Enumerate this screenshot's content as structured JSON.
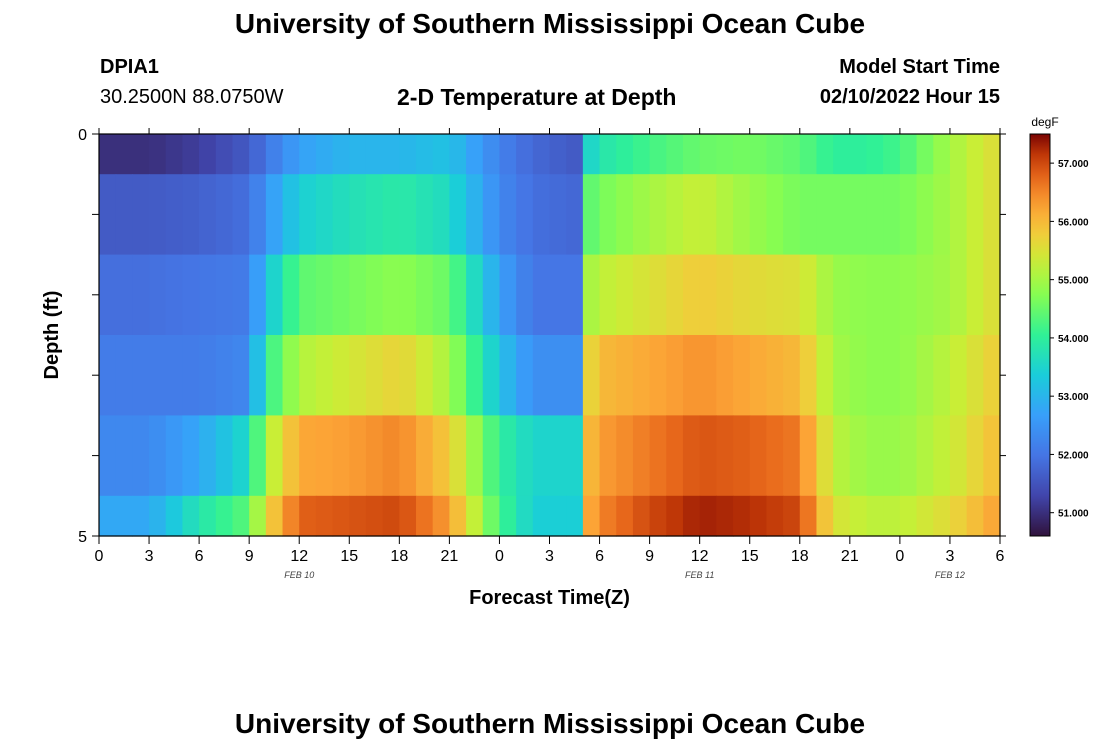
{
  "header": {
    "title": "University of Southern Mississippi Ocean Cube",
    "station": "DPIA1",
    "coords": "30.2500N  88.0750W",
    "plot_title": "2-D Temperature at Depth",
    "model_start_label": "Model Start Time",
    "model_start_value": "02/10/2022 Hour 15"
  },
  "footer": {
    "title": "University of Southern Mississippi Ocean Cube"
  },
  "chart_data": {
    "type": "heatmap",
    "title": "2-D Temperature at Depth",
    "xlabel": "Forecast Time(Z)",
    "ylabel": "Depth (ft)",
    "x_range_hours": [
      0,
      54
    ],
    "x_ticks": [
      "0",
      "3",
      "6",
      "9",
      "12",
      "15",
      "18",
      "21",
      "0",
      "3",
      "6",
      "9",
      "12",
      "15",
      "18",
      "21",
      "0",
      "3",
      "6"
    ],
    "date_labels": [
      {
        "text": "FEB 10",
        "hour": 12
      },
      {
        "text": "FEB 11",
        "hour": 36
      },
      {
        "text": "FEB 12",
        "hour": 51
      }
    ],
    "y_ticks": [
      "0",
      "5"
    ],
    "ylim": [
      0,
      5
    ],
    "depth_levels": [
      "0-0.5",
      "0.5-1.5",
      "1.5-2.5",
      "2.5-3.5",
      "3.5-4.5",
      "4.5-5"
    ],
    "colorbar": {
      "unit": "degF",
      "min": 50.6,
      "max": 57.5,
      "labels": [
        "57.000",
        "56.000",
        "55.000",
        "54.000",
        "53.000",
        "52.000",
        "51.000"
      ],
      "label_values": [
        57,
        56,
        55,
        54,
        53,
        52,
        51
      ]
    },
    "value_keyframes_hours": [
      0,
      3,
      6,
      9,
      10,
      12,
      15,
      18,
      21,
      24,
      26,
      28.5,
      29,
      30,
      33,
      36,
      39,
      42,
      44,
      46,
      48,
      51,
      54
    ],
    "rows": [
      [
        51.0,
        51.0,
        51.2,
        51.6,
        52.0,
        52.7,
        53.0,
        53.0,
        53.2,
        52.2,
        51.8,
        51.6,
        53.3,
        53.8,
        54.2,
        54.5,
        54.6,
        54.4,
        54.0,
        54.0,
        54.2,
        55.0,
        55.6
      ],
      [
        51.6,
        51.6,
        51.7,
        51.9,
        52.5,
        53.4,
        53.7,
        53.9,
        53.6,
        52.3,
        51.9,
        51.8,
        54.3,
        54.6,
        55.0,
        55.3,
        54.9,
        54.6,
        54.6,
        54.6,
        54.6,
        55.0,
        55.6
      ],
      [
        51.9,
        51.9,
        52.0,
        52.1,
        53.2,
        54.4,
        54.6,
        54.8,
        54.5,
        52.7,
        52.0,
        52.0,
        54.9,
        55.2,
        55.5,
        55.8,
        55.6,
        55.5,
        54.9,
        54.8,
        54.8,
        55.0,
        55.6
      ],
      [
        52.1,
        52.1,
        52.1,
        52.3,
        54.0,
        55.1,
        55.4,
        55.7,
        55.0,
        53.2,
        52.4,
        52.4,
        55.4,
        56.0,
        56.2,
        56.4,
        56.2,
        56.0,
        55.0,
        54.8,
        54.8,
        55.2,
        55.8
      ],
      [
        52.3,
        52.3,
        52.8,
        53.6,
        55.0,
        56.2,
        56.3,
        56.5,
        55.8,
        54.0,
        53.5,
        53.5,
        55.8,
        56.3,
        56.6,
        56.9,
        56.8,
        56.6,
        55.2,
        54.9,
        54.9,
        55.3,
        56.0
      ],
      [
        52.8,
        52.8,
        53.8,
        54.4,
        55.6,
        56.8,
        56.9,
        57.0,
        56.3,
        54.2,
        53.4,
        53.4,
        56.0,
        56.5,
        57.0,
        57.3,
        57.2,
        57.0,
        55.5,
        55.2,
        55.2,
        55.6,
        56.3
      ]
    ]
  }
}
